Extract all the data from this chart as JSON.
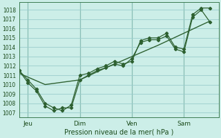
{
  "xlabel": "Pression niveau de la mer( hPa )",
  "background_color": "#cceee8",
  "grid_color": "#99cccc",
  "line_color": "#2d6030",
  "ylim": [
    1006.5,
    1018.8
  ],
  "xlim": [
    0,
    23
  ],
  "xtick_positions": [
    1,
    7,
    13,
    19
  ],
  "xtick_labels": [
    "Jeu",
    "Dim",
    "Ven",
    "Sam"
  ],
  "ytick_positions": [
    1007,
    1008,
    1009,
    1010,
    1011,
    1012,
    1013,
    1014,
    1015,
    1016,
    1017,
    1018
  ],
  "vline_positions": [
    1,
    7,
    13,
    19
  ],
  "line1_x": [
    0,
    1,
    2,
    3,
    4,
    5,
    6,
    7,
    8,
    9,
    10,
    11,
    12,
    13,
    14,
    15,
    16,
    17,
    18,
    19,
    20,
    21,
    22
  ],
  "line1_y": [
    1011.5,
    1010.5,
    1009.5,
    1008.0,
    1007.5,
    1007.2,
    1007.8,
    1011.0,
    1011.2,
    1011.7,
    1012.0,
    1012.5,
    1012.2,
    1012.5,
    1014.7,
    1015.0,
    1015.0,
    1015.5,
    1014.0,
    1013.8,
    1017.5,
    1018.2,
    1018.2
  ],
  "line2_x": [
    0,
    1,
    2,
    3,
    4,
    5,
    6,
    7,
    8,
    9,
    10,
    11,
    12,
    13,
    14,
    15,
    16,
    17,
    18,
    19,
    20,
    21,
    22
  ],
  "line2_y": [
    1011.5,
    1010.2,
    1009.3,
    1007.7,
    1007.2,
    1007.5,
    1007.5,
    1010.5,
    1011.0,
    1011.5,
    1011.8,
    1012.2,
    1012.0,
    1012.8,
    1014.5,
    1014.8,
    1014.8,
    1015.2,
    1013.8,
    1013.5,
    1017.2,
    1018.0,
    1016.7
  ],
  "line3_x": [
    0,
    3,
    7,
    10,
    13,
    16,
    19,
    22
  ],
  "line3_y": [
    1011.2,
    1010.0,
    1010.5,
    1011.8,
    1013.0,
    1014.2,
    1015.5,
    1016.8
  ]
}
